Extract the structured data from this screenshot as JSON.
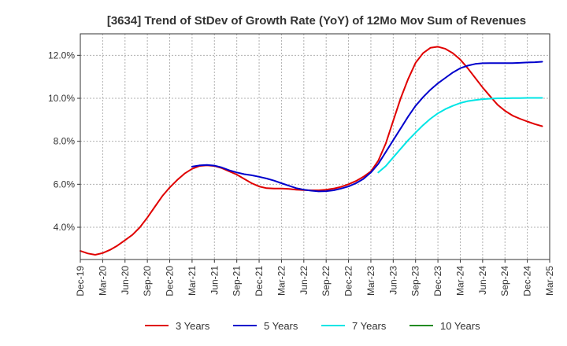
{
  "chart_data": {
    "type": "line",
    "title": "[3634]  Trend of StDev of Growth Rate (YoY) of 12Mo Mov Sum of Revenues",
    "xlabel": "",
    "ylabel": "",
    "x_ticks": [
      "Dec-19",
      "Mar-20",
      "Jun-20",
      "Sep-20",
      "Dec-20",
      "Mar-21",
      "Jun-21",
      "Sep-21",
      "Dec-21",
      "Mar-22",
      "Jun-22",
      "Sep-22",
      "Dec-22",
      "Mar-23",
      "Jun-23",
      "Sep-23",
      "Dec-23",
      "Mar-24",
      "Jun-24",
      "Sep-24",
      "Dec-24",
      "Mar-25"
    ],
    "y_ticks": [
      4.0,
      6.0,
      8.0,
      10.0,
      12.0
    ],
    "y_tick_labels": [
      "4.0%",
      "6.0%",
      "8.0%",
      "10.0%",
      "12.0%"
    ],
    "ylim": [
      2.5,
      13.0
    ],
    "x_range_months": [
      0,
      63
    ],
    "grid": true,
    "legend_position": "bottom",
    "series": [
      {
        "name": "3 Years",
        "color": "#e00000",
        "points": [
          [
            0,
            2.9
          ],
          [
            1,
            2.78
          ],
          [
            2,
            2.72
          ],
          [
            3,
            2.8
          ],
          [
            4,
            2.95
          ],
          [
            5,
            3.15
          ],
          [
            6,
            3.4
          ],
          [
            7,
            3.65
          ],
          [
            8,
            4.0
          ],
          [
            9,
            4.45
          ],
          [
            10,
            4.95
          ],
          [
            11,
            5.45
          ],
          [
            12,
            5.85
          ],
          [
            13,
            6.2
          ],
          [
            14,
            6.5
          ],
          [
            15,
            6.72
          ],
          [
            16,
            6.85
          ],
          [
            17,
            6.88
          ],
          [
            18,
            6.85
          ],
          [
            19,
            6.75
          ],
          [
            20,
            6.6
          ],
          [
            21,
            6.45
          ],
          [
            22,
            6.25
          ],
          [
            23,
            6.05
          ],
          [
            24,
            5.9
          ],
          [
            25,
            5.82
          ],
          [
            26,
            5.8
          ],
          [
            27,
            5.8
          ],
          [
            28,
            5.78
          ],
          [
            29,
            5.75
          ],
          [
            30,
            5.73
          ],
          [
            31,
            5.72
          ],
          [
            32,
            5.72
          ],
          [
            33,
            5.75
          ],
          [
            34,
            5.8
          ],
          [
            35,
            5.88
          ],
          [
            36,
            6.0
          ],
          [
            37,
            6.15
          ],
          [
            38,
            6.35
          ],
          [
            39,
            6.6
          ],
          [
            40,
            7.1
          ],
          [
            41,
            7.9
          ],
          [
            42,
            8.95
          ],
          [
            43,
            10.0
          ],
          [
            44,
            10.9
          ],
          [
            45,
            11.65
          ],
          [
            46,
            12.1
          ],
          [
            47,
            12.35
          ],
          [
            48,
            12.4
          ],
          [
            49,
            12.3
          ],
          [
            50,
            12.1
          ],
          [
            51,
            11.8
          ],
          [
            52,
            11.4
          ],
          [
            53,
            10.95
          ],
          [
            54,
            10.5
          ],
          [
            55,
            10.1
          ],
          [
            56,
            9.7
          ],
          [
            57,
            9.42
          ],
          [
            58,
            9.2
          ],
          [
            59,
            9.05
          ],
          [
            60,
            8.92
          ],
          [
            61,
            8.8
          ],
          [
            62,
            8.7
          ]
        ]
      },
      {
        "name": "5 Years",
        "color": "#0000cc",
        "points": [
          [
            15,
            6.82
          ],
          [
            16,
            6.88
          ],
          [
            17,
            6.9
          ],
          [
            18,
            6.87
          ],
          [
            19,
            6.78
          ],
          [
            20,
            6.65
          ],
          [
            21,
            6.55
          ],
          [
            22,
            6.47
          ],
          [
            23,
            6.42
          ],
          [
            24,
            6.35
          ],
          [
            25,
            6.27
          ],
          [
            26,
            6.17
          ],
          [
            27,
            6.05
          ],
          [
            28,
            5.93
          ],
          [
            29,
            5.82
          ],
          [
            30,
            5.75
          ],
          [
            31,
            5.7
          ],
          [
            32,
            5.67
          ],
          [
            33,
            5.68
          ],
          [
            34,
            5.72
          ],
          [
            35,
            5.8
          ],
          [
            36,
            5.9
          ],
          [
            37,
            6.05
          ],
          [
            38,
            6.25
          ],
          [
            39,
            6.55
          ],
          [
            40,
            6.95
          ],
          [
            41,
            7.5
          ],
          [
            42,
            8.05
          ],
          [
            43,
            8.6
          ],
          [
            44,
            9.15
          ],
          [
            45,
            9.65
          ],
          [
            46,
            10.05
          ],
          [
            47,
            10.4
          ],
          [
            48,
            10.7
          ],
          [
            49,
            10.95
          ],
          [
            50,
            11.2
          ],
          [
            51,
            11.4
          ],
          [
            52,
            11.52
          ],
          [
            53,
            11.6
          ],
          [
            54,
            11.63
          ],
          [
            55,
            11.64
          ],
          [
            56,
            11.64
          ],
          [
            57,
            11.64
          ],
          [
            58,
            11.64
          ],
          [
            59,
            11.65
          ],
          [
            60,
            11.67
          ],
          [
            61,
            11.68
          ],
          [
            62,
            11.7
          ]
        ]
      },
      {
        "name": "7 Years",
        "color": "#00e5e5",
        "points": [
          [
            40,
            6.55
          ],
          [
            41,
            6.85
          ],
          [
            42,
            7.25
          ],
          [
            43,
            7.65
          ],
          [
            44,
            8.05
          ],
          [
            45,
            8.4
          ],
          [
            46,
            8.75
          ],
          [
            47,
            9.05
          ],
          [
            48,
            9.3
          ],
          [
            49,
            9.5
          ],
          [
            50,
            9.65
          ],
          [
            51,
            9.78
          ],
          [
            52,
            9.87
          ],
          [
            53,
            9.92
          ],
          [
            54,
            9.96
          ],
          [
            55,
            9.98
          ],
          [
            56,
            10.0
          ],
          [
            57,
            10.0
          ],
          [
            58,
            10.01
          ],
          [
            59,
            10.01
          ],
          [
            60,
            10.02
          ],
          [
            61,
            10.02
          ],
          [
            62,
            10.02
          ]
        ]
      },
      {
        "name": "10 Years",
        "color": "#228b22",
        "points": []
      }
    ]
  }
}
